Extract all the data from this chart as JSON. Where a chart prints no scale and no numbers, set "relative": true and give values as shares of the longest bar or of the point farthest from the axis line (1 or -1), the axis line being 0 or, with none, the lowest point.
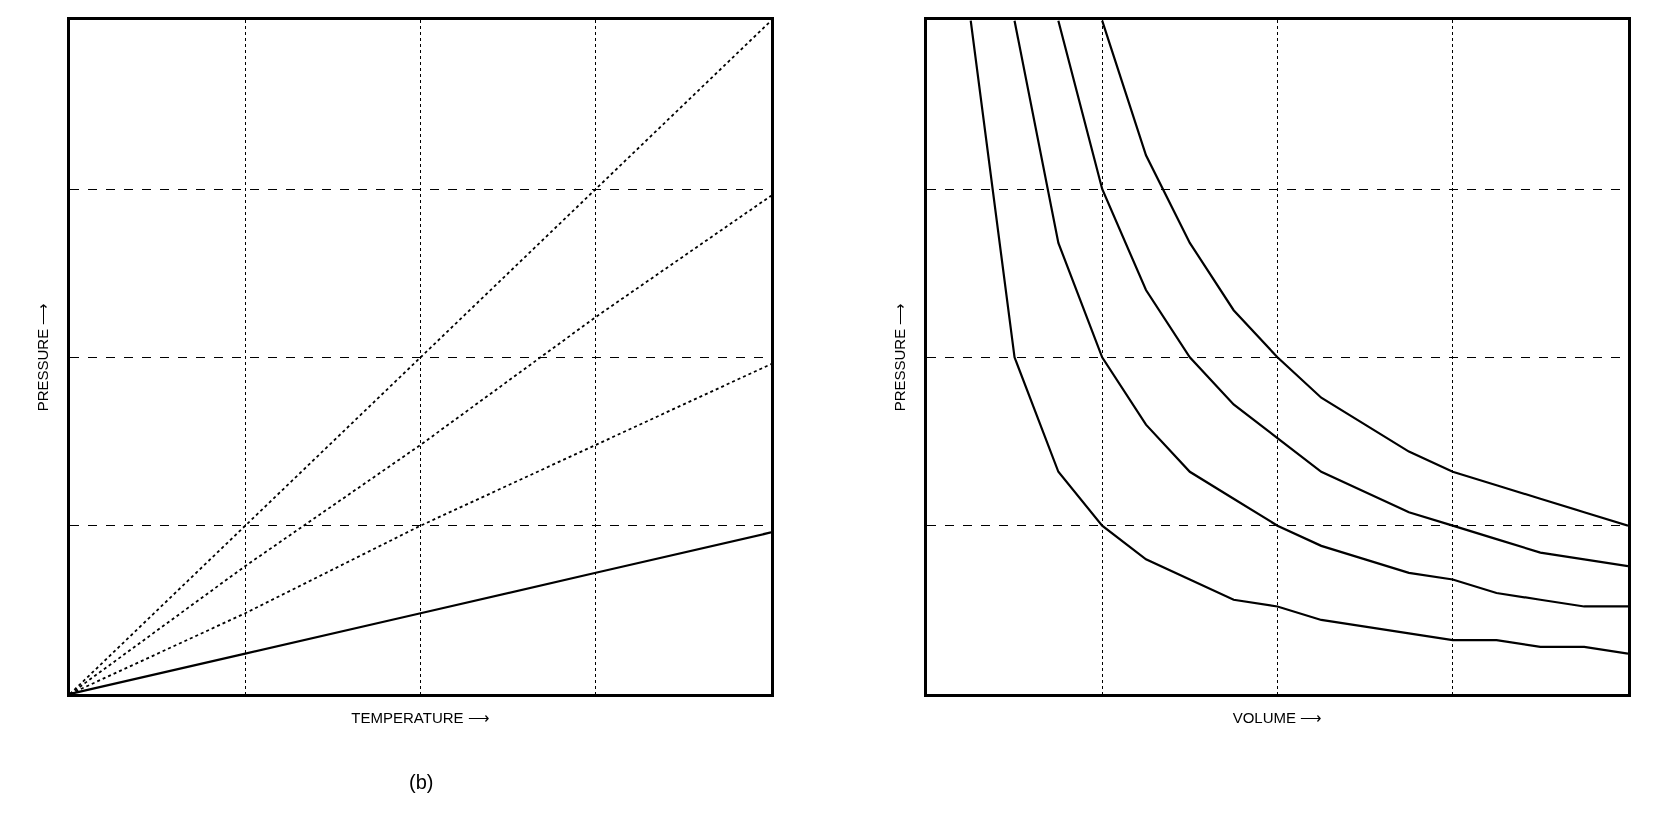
{
  "chart_data": [
    {
      "type": "line",
      "relative": true,
      "xlabel": "TEMPERATURE ⟶",
      "ylabel": "PRESSURE ⟶",
      "annotations": [
        "(b)"
      ],
      "grid": true,
      "marker": "none",
      "categories": [
        null,
        null,
        null,
        null,
        null
      ],
      "series": [
        {
          "color": "#000000",
          "line_style": "solid",
          "values": [
            0,
            0.06,
            0.12,
            0.18,
            0.24
          ]
        },
        {
          "color": "#000000",
          "line_style": "dotted",
          "values": [
            0,
            0.12,
            0.25,
            0.37,
            0.49
          ]
        },
        {
          "color": "#000000",
          "line_style": "dotted",
          "values": [
            0,
            0.19,
            0.37,
            0.56,
            0.74
          ]
        },
        {
          "color": "#000000",
          "line_style": "dotted",
          "values": [
            0,
            0.25,
            0.5,
            0.75,
            1
          ]
        }
      ]
    },
    {
      "type": "line",
      "relative": true,
      "xlabel": "VOLUME ⟶",
      "ylabel": "PRESSURE ⟶",
      "grid": true,
      "marker": "none",
      "line_style": "solid",
      "categories": [
        null,
        null,
        null,
        null,
        null,
        null,
        null,
        null,
        null,
        null,
        null,
        null,
        null,
        null,
        null,
        null,
        null
      ],
      "series": [
        {
          "color": "#000000",
          "values": [
            null,
            1,
            0.5,
            0.33,
            0.25,
            0.2,
            0.17,
            0.14,
            0.13,
            0.11,
            0.1,
            0.09,
            0.08,
            0.08,
            0.07,
            0.07,
            0.06
          ]
        },
        {
          "color": "#000000",
          "values": [
            null,
            null,
            1,
            0.67,
            0.5,
            0.4,
            0.33,
            0.29,
            0.25,
            0.22,
            0.2,
            0.18,
            0.17,
            0.15,
            0.14,
            0.13,
            0.13
          ]
        },
        {
          "color": "#000000",
          "values": [
            null,
            null,
            null,
            1,
            0.75,
            0.6,
            0.5,
            0.43,
            0.38,
            0.33,
            0.3,
            0.27,
            0.25,
            0.23,
            0.21,
            0.2,
            0.19
          ]
        },
        {
          "color": "#000000",
          "values": [
            null,
            null,
            null,
            null,
            1,
            0.8,
            0.67,
            0.57,
            0.5,
            0.44,
            0.4,
            0.36,
            0.33,
            0.31,
            0.29,
            0.27,
            0.25
          ]
        }
      ]
    }
  ]
}
